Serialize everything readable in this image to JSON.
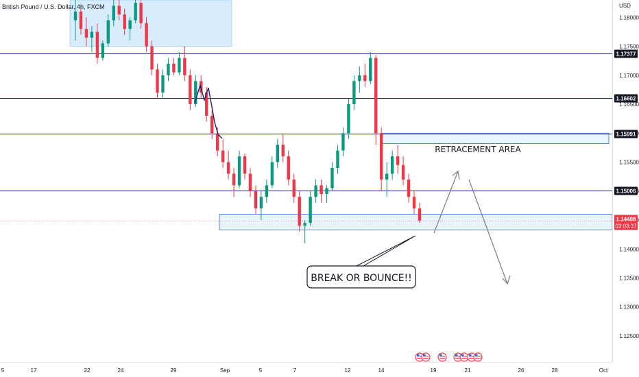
{
  "chart_data": {
    "type": "candlestick",
    "title": "British Pound / U.S. Dollar, 4h, FXCM",
    "currency": "USD",
    "y_range": [
      1.1205,
      1.183
    ],
    "y_ticks": [
      "1.18000",
      "1.17500",
      "1.17000",
      "1.16500",
      "1.16000",
      "1.15500",
      "1.15000",
      "1.14500",
      "1.14000",
      "1.13500",
      "1.13000",
      "1.12500"
    ],
    "x_ticks": [
      "5",
      "17",
      "22",
      "24",
      "29",
      "Sep",
      "5",
      "7",
      "12",
      "14",
      "19",
      "21",
      "26",
      "28",
      "Oct"
    ],
    "horizontal_levels": [
      {
        "value": 1.17377,
        "label": "1.17377"
      },
      {
        "value": 1.16602,
        "label": "1.16602"
      },
      {
        "value": 1.15991,
        "label": "1.15991"
      },
      {
        "value": 1.15006,
        "label": "1.15006"
      }
    ],
    "current_price": {
      "label": "1.14488",
      "countdown": "03:03:37",
      "color": "#f23645"
    },
    "zones": [
      {
        "name": "top-box",
        "low": 1.175,
        "high": 1.183
      },
      {
        "name": "retracement-area",
        "low": 1.1582,
        "high": 1.16
      },
      {
        "name": "support-box",
        "low": 1.1433,
        "high": 1.146
      }
    ],
    "annotations": [
      "RETRACEMENT AREA",
      "BREAK OR BOUNCE!!"
    ],
    "ohlc": [
      [
        1.1795,
        1.183,
        1.176,
        1.181
      ],
      [
        1.181,
        1.182,
        1.177,
        1.178
      ],
      [
        1.178,
        1.18,
        1.175,
        1.1765
      ],
      [
        1.1765,
        1.1785,
        1.174,
        1.1775
      ],
      [
        1.1775,
        1.179,
        1.172,
        1.173
      ],
      [
        1.173,
        1.176,
        1.1725,
        1.1755
      ],
      [
        1.1755,
        1.1805,
        1.175,
        1.1795
      ],
      [
        1.1795,
        1.183,
        1.1785,
        1.182
      ],
      [
        1.182,
        1.183,
        1.1795,
        1.1805
      ],
      [
        1.1805,
        1.1815,
        1.177,
        1.178
      ],
      [
        1.178,
        1.18,
        1.176,
        1.1795
      ],
      [
        1.1795,
        1.183,
        1.179,
        1.1825
      ],
      [
        1.1825,
        1.183,
        1.178,
        1.179
      ],
      [
        1.179,
        1.18,
        1.174,
        1.175
      ],
      [
        1.175,
        1.176,
        1.17,
        1.171
      ],
      [
        1.171,
        1.172,
        1.166,
        1.167
      ],
      [
        1.167,
        1.171,
        1.166,
        1.17
      ],
      [
        1.17,
        1.173,
        1.169,
        1.172
      ],
      [
        1.172,
        1.173,
        1.17,
        1.1705
      ],
      [
        1.1705,
        1.174,
        1.17,
        1.173
      ],
      [
        1.173,
        1.175,
        1.169,
        1.17
      ],
      [
        1.17,
        1.171,
        1.164,
        1.165
      ],
      [
        1.165,
        1.17,
        1.1645,
        1.169
      ],
      [
        1.169,
        1.17,
        1.166,
        1.167
      ],
      [
        1.167,
        1.168,
        1.162,
        1.163
      ],
      [
        1.163,
        1.164,
        1.159,
        1.16
      ],
      [
        1.16,
        1.161,
        1.156,
        1.157
      ],
      [
        1.157,
        1.159,
        1.154,
        1.155
      ],
      [
        1.155,
        1.157,
        1.152,
        1.153
      ],
      [
        1.153,
        1.154,
        1.149,
        1.151
      ],
      [
        1.151,
        1.157,
        1.1505,
        1.156
      ],
      [
        1.156,
        1.1565,
        1.152,
        1.153
      ],
      [
        1.153,
        1.154,
        1.149,
        1.15
      ],
      [
        1.15,
        1.151,
        1.146,
        1.147
      ],
      [
        1.147,
        1.15,
        1.145,
        1.149
      ],
      [
        1.149,
        1.152,
        1.148,
        1.151
      ],
      [
        1.151,
        1.156,
        1.1505,
        1.155
      ],
      [
        1.155,
        1.159,
        1.154,
        1.158
      ],
      [
        1.158,
        1.16,
        1.155,
        1.156
      ],
      [
        1.156,
        1.157,
        1.151,
        1.152
      ],
      [
        1.152,
        1.153,
        1.148,
        1.149
      ],
      [
        1.149,
        1.15,
        1.143,
        1.144
      ],
      [
        1.144,
        1.145,
        1.141,
        1.1445
      ],
      [
        1.1445,
        1.15,
        1.144,
        1.149
      ],
      [
        1.149,
        1.152,
        1.148,
        1.151
      ],
      [
        1.151,
        1.152,
        1.148,
        1.1495
      ],
      [
        1.1495,
        1.151,
        1.148,
        1.1505
      ],
      [
        1.1505,
        1.155,
        1.15,
        1.154
      ],
      [
        1.154,
        1.158,
        1.153,
        1.157
      ],
      [
        1.157,
        1.161,
        1.156,
        1.16
      ],
      [
        1.16,
        1.166,
        1.159,
        1.165
      ],
      [
        1.165,
        1.17,
        1.164,
        1.169
      ],
      [
        1.169,
        1.1715,
        1.167,
        1.17
      ],
      [
        1.17,
        1.172,
        1.168,
        1.169
      ],
      [
        1.169,
        1.174,
        1.1685,
        1.173
      ],
      [
        1.173,
        1.1735,
        1.158,
        1.16
      ],
      [
        1.16,
        1.161,
        1.15,
        1.152
      ],
      [
        1.152,
        1.155,
        1.149,
        1.153
      ],
      [
        1.153,
        1.157,
        1.152,
        1.156
      ],
      [
        1.156,
        1.158,
        1.153,
        1.1545
      ],
      [
        1.1545,
        1.156,
        1.151,
        1.152
      ],
      [
        1.152,
        1.153,
        1.148,
        1.149
      ],
      [
        1.149,
        1.15,
        1.146,
        1.147
      ],
      [
        1.147,
        1.148,
        1.1445,
        1.1449
      ]
    ]
  }
}
